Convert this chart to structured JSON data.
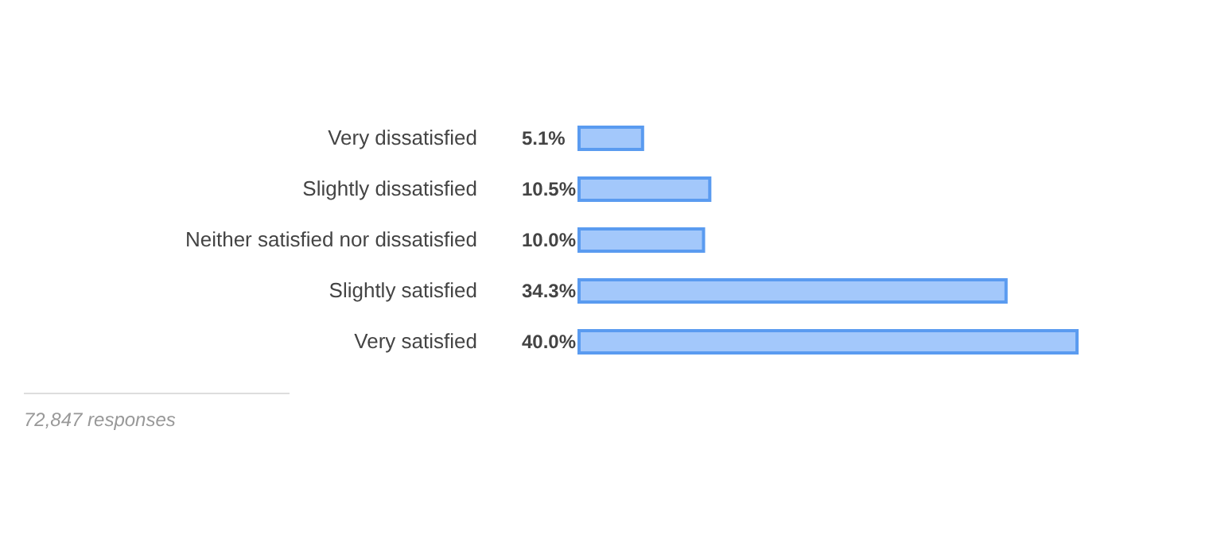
{
  "chart_data": {
    "type": "bar",
    "orientation": "horizontal",
    "categories": [
      "Very dissatisfied",
      "Slightly dissatisfied",
      "Neither satisfied nor dissatisfied",
      "Slightly satisfied",
      "Very satisfied"
    ],
    "values": [
      5.1,
      10.5,
      10.0,
      34.3,
      40.0
    ],
    "value_labels": [
      "5.1%",
      "10.5%",
      "10.0%",
      "34.3%",
      "40.0%"
    ],
    "color": "#a3c8fb",
    "annotations": [
      "72,847 responses"
    ]
  }
}
